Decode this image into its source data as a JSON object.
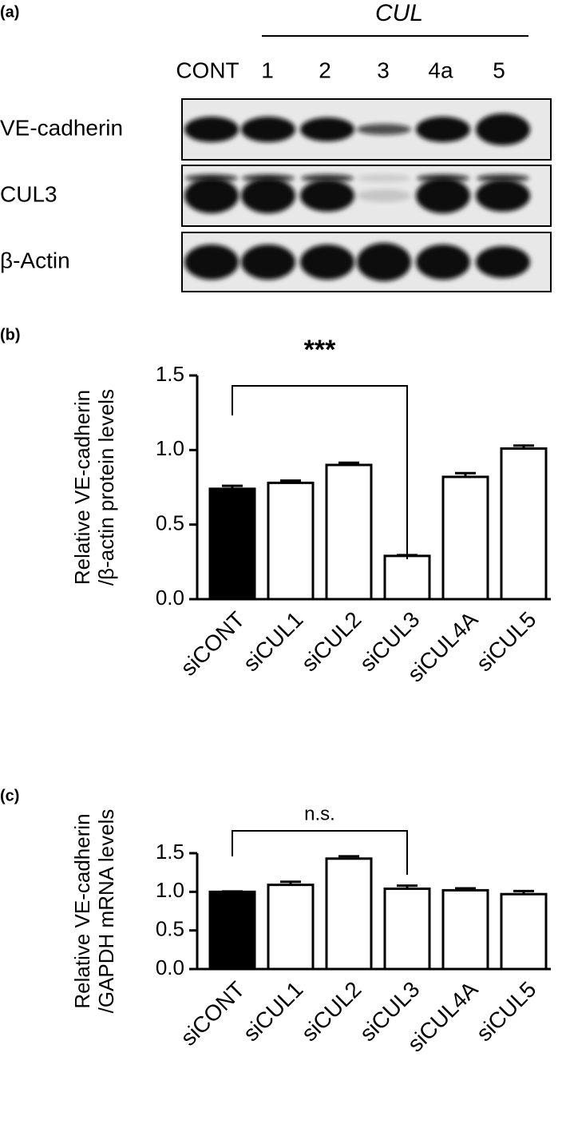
{
  "panel_a": {
    "label": "(a)",
    "group_label": "CUL",
    "lanes": [
      "CONT",
      "1",
      "2",
      "3",
      "4a",
      "5"
    ],
    "rows": [
      "VE-cadherin",
      "CUL3",
      "β-Actin"
    ]
  },
  "chart_data": [
    {
      "type": "bar",
      "panel_label": "(b)",
      "ylabel": [
        "Relative VE-cadherin",
        "/β-actin protein levels"
      ],
      "categories": [
        "siCONT",
        "siCUL1",
        "siCUL2",
        "siCUL3",
        "siCUL4A",
        "siCUL5"
      ],
      "values": [
        0.74,
        0.78,
        0.9,
        0.29,
        0.82,
        1.01
      ],
      "errors": [
        0.02,
        0.015,
        0.015,
        0.005,
        0.025,
        0.02
      ],
      "colors": [
        "#000000",
        "#ffffff",
        "#ffffff",
        "#ffffff",
        "#ffffff",
        "#ffffff"
      ],
      "edge_color": "#000000",
      "annotation": "***",
      "ylim": [
        0,
        1.5
      ],
      "yticks": [
        {
          "value": 0,
          "label": "0.0"
        },
        0.5,
        {
          "value": 1,
          "label": "1.0"
        },
        1.5
      ]
    },
    {
      "type": "bar",
      "panel_label": "(c)",
      "ylabel": [
        "Relative VE-cadherin",
        "/GAPDH mRNA levels"
      ],
      "categories": [
        "siCONT",
        "siCUL1",
        "siCUL2",
        "siCUL3",
        "siCUL4A",
        "siCUL5"
      ],
      "values": [
        1.0,
        1.09,
        1.43,
        1.04,
        1.02,
        0.97
      ],
      "errors": [
        0.005,
        0.04,
        0.03,
        0.04,
        0.025,
        0.04
      ],
      "colors": [
        "#000000",
        "#ffffff",
        "#ffffff",
        "#ffffff",
        "#ffffff",
        "#ffffff"
      ],
      "edge_color": "#000000",
      "annotation": "n.s.",
      "ylim": [
        0,
        1.5
      ],
      "yticks": [
        {
          "value": 0,
          "label": "0.0"
        },
        0.5,
        {
          "value": 1,
          "label": "1.0"
        },
        1.5
      ]
    }
  ]
}
